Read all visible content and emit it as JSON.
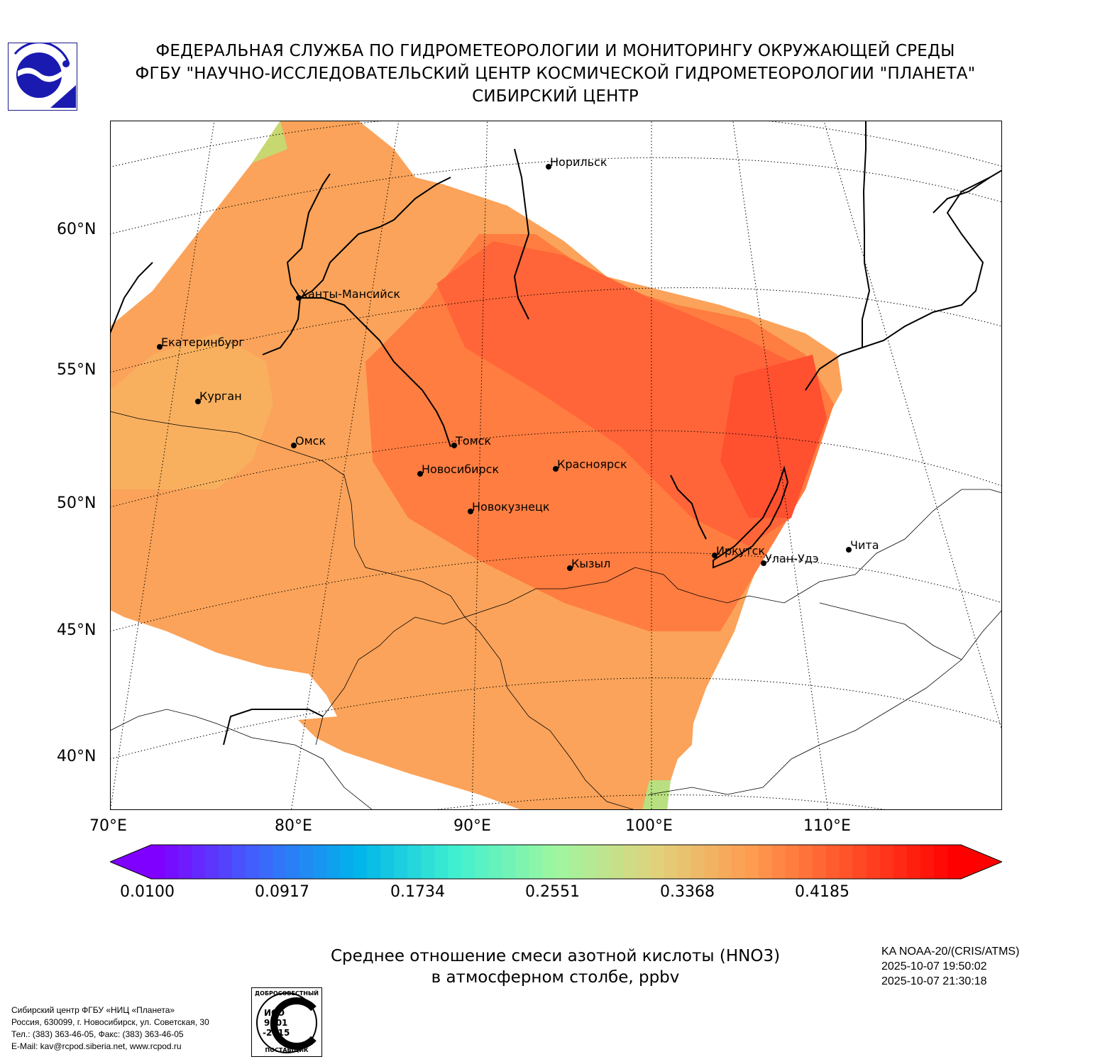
{
  "header": {
    "line1": "ФЕДЕРАЛЬНАЯ СЛУЖБА ПО ГИДРОМЕТЕОРОЛОГИИ И МОНИТОРИНГУ ОКРУЖАЮЩЕЙ СРЕДЫ",
    "line2": "ФГБУ \"НАУЧНО-ИССЛЕДОВАТЕЛЬСКИЙ ЦЕНТР КОСМИЧЕСКОЙ ГИДРОМЕТЕОРОЛОГИИ \"ПЛАНЕТА\"",
    "line3": "СИБИРСКИЙ ЦЕНТР"
  },
  "map": {
    "lat_labels": [
      "60°N",
      "55°N",
      "50°N",
      "45°N",
      "40°N"
    ],
    "lon_labels": [
      "70°E",
      "80°E",
      "90°E",
      "100°E",
      "110°E"
    ],
    "cities": [
      "Норильск",
      "Ханты-Мансийск",
      "Екатеринбург",
      "Курган",
      "Омск",
      "Томск",
      "Новосибирск",
      "Красноярск",
      "Новокузнецк",
      "Кызыл",
      "Иркутск",
      "Улан-Удэ",
      "Чита"
    ]
  },
  "colorbar": {
    "ticks": [
      "0.0100",
      "0.0917",
      "0.1734",
      "0.2551",
      "0.3368",
      "0.4185"
    ],
    "colors": [
      "#7f00ff",
      "#3f63fc",
      "#00b4ea",
      "#40f0d0",
      "#9ef6a0",
      "#e0d27c",
      "#ff9a4e",
      "#ff4c26",
      "#ff0000"
    ]
  },
  "caption": {
    "line1": "Среднее отношение смеси азотной кислоты (HNO3)",
    "line2": "в атмосферном столбе, ppbv"
  },
  "satellite": {
    "name": "KA NOAA-20/(CRIS/ATMS)",
    "time1": "2025-10-07 19:50:02",
    "time2": "2025-10-07 21:30:18"
  },
  "footer": {
    "org": "Сибирский центр ФГБУ «НИЦ «Планета»",
    "address": "Россия, 630099, г. Новосибирск, ул. Советская, 30",
    "phone": "Тел.: (383) 363-46-05, Факс: (383) 363-46-05",
    "email": "E-Mail: kav@rcpod.siberia.net, www.rcpod.ru"
  },
  "iso_badge": {
    "top_text": "ДОБРОСОВЕСТНЫЙ",
    "mid_text1": "ИСО",
    "mid_text2": "9001",
    "mid_text3": "-2015",
    "bottom_text": "ПОСТАВЩИК"
  }
}
